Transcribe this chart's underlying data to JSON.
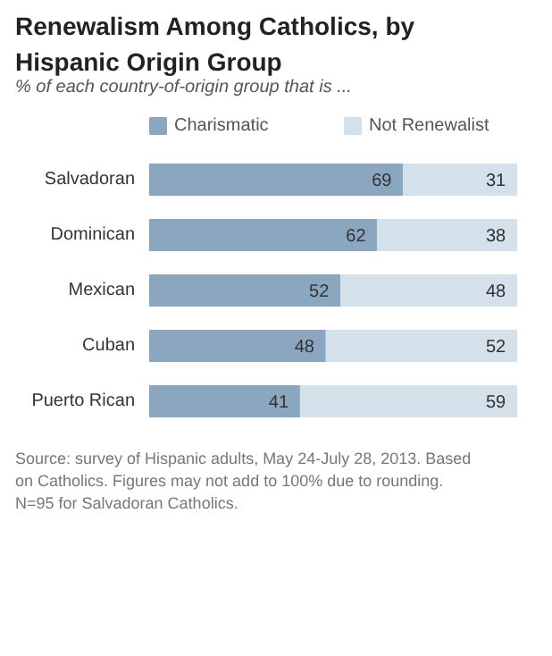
{
  "chart_data": {
    "type": "bar",
    "orientation": "horizontal",
    "stacked": true,
    "title": "Renewalism Among Catholics, by Hispanic Origin Group",
    "subtitle": "% of each country-of-origin group that is ...",
    "categories": [
      "Salvadoran",
      "Dominican",
      "Mexican",
      "Cuban",
      "Puerto Rican"
    ],
    "series": [
      {
        "name": "Charismatic",
        "color": "#8ba7c0",
        "values": [
          69,
          62,
          52,
          48,
          41
        ]
      },
      {
        "name": "Not Renewalist",
        "color": "#d4e0ea",
        "values": [
          31,
          38,
          48,
          52,
          59
        ]
      }
    ],
    "data_labels": true,
    "legend": "top",
    "annotations": [
      "Source: survey of Hispanic adults, May 24-July 28, 2013. Based on Catholics. Figures may not add to 100% due to rounding. N=95 for Salvadoran Catholics."
    ]
  }
}
